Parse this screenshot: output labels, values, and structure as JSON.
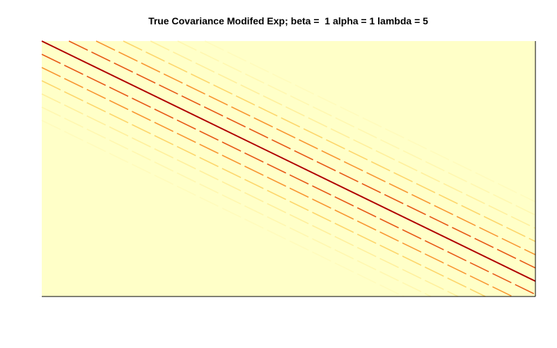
{
  "chart_data": {
    "type": "heatmap",
    "title": "True Covariance Modifed Exp; beta =  1 alpha = 1 lambda = 5",
    "xlabel": "",
    "ylabel": "",
    "axes_visible": false,
    "grid": false,
    "legend": "none",
    "colormap": [
      "#FFFFC8",
      "#FFF1A0",
      "#FDD56A",
      "#FBA63A",
      "#F2711C",
      "#D83A0E",
      "#B00000"
    ],
    "background_value": 0.0,
    "bands": [
      {
        "offset": 0,
        "value": 1.0
      },
      {
        "offset": 1,
        "value": 0.74
      },
      {
        "offset": -1,
        "value": 0.74
      },
      {
        "offset": 2,
        "value": 0.55
      },
      {
        "offset": -2,
        "value": 0.55
      },
      {
        "offset": 3,
        "value": 0.33
      },
      {
        "offset": -3,
        "value": 0.33
      },
      {
        "offset": 4,
        "value": 0.18
      },
      {
        "offset": -4,
        "value": 0.18
      },
      {
        "offset": 5,
        "value": 0.1
      },
      {
        "offset": -5,
        "value": 0.1
      },
      {
        "offset": 6,
        "value": 0.05
      },
      {
        "offset": -6,
        "value": 0.05
      }
    ]
  },
  "colors": {
    "background": "#FFFFC8",
    "frame": "#000000"
  }
}
